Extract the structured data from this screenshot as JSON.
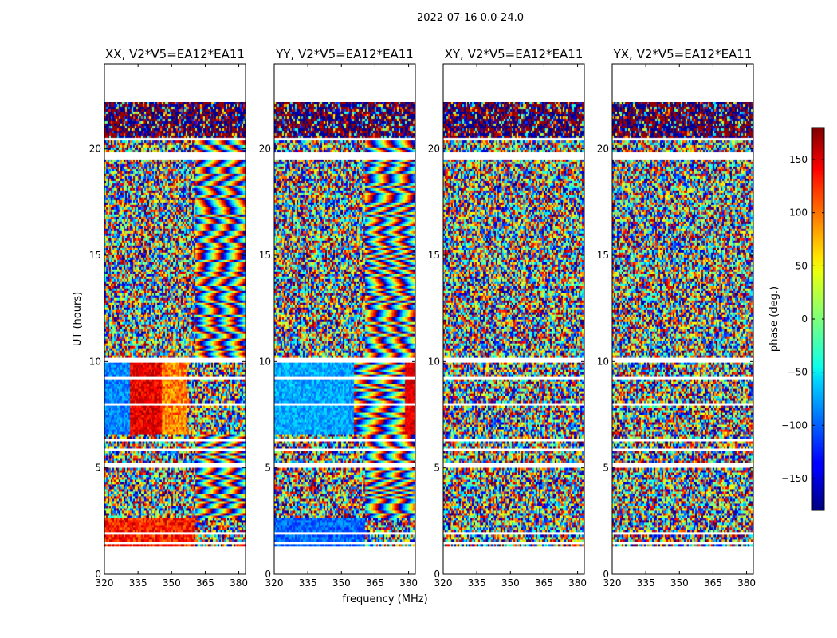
{
  "figure": {
    "suptitle": "2022-07-16 0.0-24.0",
    "xlabel": "frequency (MHz)",
    "ylabel": "UT (hours)"
  },
  "chart_data": {
    "type": "heatmap",
    "panels": [
      {
        "title": "XX, V2*V5=EA12*EA11",
        "pattern": "xx"
      },
      {
        "title": "YY, V2*V5=EA12*EA11",
        "pattern": "yy"
      },
      {
        "title": "XY, V2*V5=EA12*EA11",
        "pattern": "noise"
      },
      {
        "title": "YX, V2*V5=EA12*EA11",
        "pattern": "noise"
      }
    ],
    "xlim": [
      320,
      383
    ],
    "ylim": [
      0,
      24
    ],
    "xticks": [
      320,
      335,
      350,
      365,
      380
    ],
    "yticks": [
      0,
      5,
      10,
      15,
      20
    ],
    "data_extent_hours": [
      1.3,
      22.2
    ],
    "colorbar": {
      "label": "phase (deg.)",
      "range": [
        -180,
        180
      ],
      "ticks": [
        150,
        100,
        50,
        0,
        -50,
        -100,
        -150
      ],
      "colormap": "jet"
    },
    "flagged_gaps_hours": [
      [
        1.4,
        1.5
      ],
      [
        1.9,
        2.05
      ],
      [
        3.55,
        3.6
      ],
      [
        5.05,
        5.3
      ],
      [
        5.8,
        5.9
      ],
      [
        6.3,
        6.4
      ],
      [
        8.0,
        8.05
      ],
      [
        9.2,
        9.3
      ],
      [
        10.05,
        10.25
      ],
      [
        19.55,
        19.85
      ],
      [
        20.45,
        20.55
      ]
    ]
  }
}
